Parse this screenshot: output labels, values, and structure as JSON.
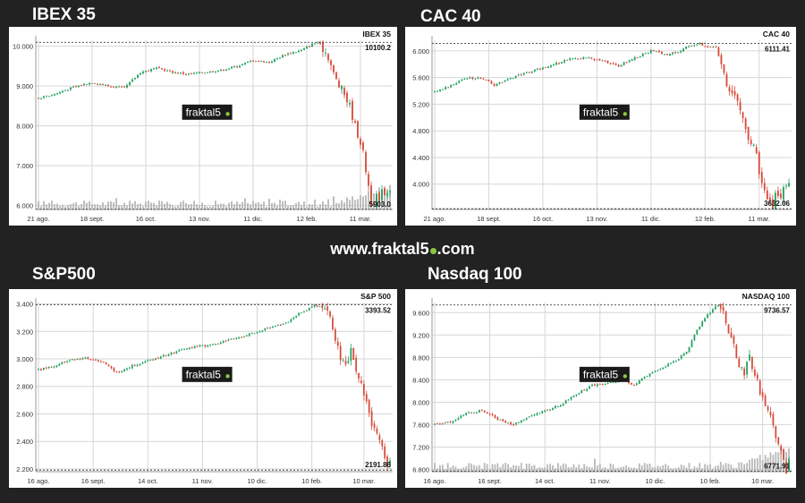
{
  "site": {
    "prefix": "www.fraktal5",
    "suffix": ".com"
  },
  "brand": {
    "text": "fraktal5",
    "dot_color": "#8cc63f"
  },
  "colors": {
    "up": "#20a060",
    "down": "#d64a3a",
    "volume": "#b8b8b8",
    "grid": "#d6d6d6",
    "page": "#222222"
  },
  "chart_data": [
    {
      "type": "candlestick",
      "title": "IBEX 35",
      "legend_label": "IBEX 35",
      "ylim": [
        5900,
        10150
      ],
      "yticks": [
        6000,
        7000,
        8000,
        9000,
        10000
      ],
      "ytick_labels": [
        "6.000",
        "7.000",
        "8.000",
        "9.000",
        "10.000"
      ],
      "xticks": [
        0,
        20,
        40,
        60,
        80,
        100,
        120
      ],
      "xtick_labels": [
        "21 ago.",
        "18 sept.",
        "16 oct.",
        "13 nov.",
        "11 dic.",
        "12 feb.",
        "11 mar."
      ],
      "n_sessions": 132,
      "anchors": [
        [
          0,
          8700
        ],
        [
          6,
          8800
        ],
        [
          12,
          8950
        ],
        [
          20,
          9100
        ],
        [
          26,
          9000
        ],
        [
          32,
          8950
        ],
        [
          38,
          9350
        ],
        [
          44,
          9450
        ],
        [
          50,
          9350
        ],
        [
          56,
          9300
        ],
        [
          62,
          9350
        ],
        [
          68,
          9400
        ],
        [
          74,
          9500
        ],
        [
          80,
          9650
        ],
        [
          86,
          9600
        ],
        [
          92,
          9800
        ],
        [
          98,
          9900
        ],
        [
          102,
          10050
        ],
        [
          104,
          10100.2
        ],
        [
          106,
          9950
        ],
        [
          108,
          9750
        ],
        [
          110,
          9300
        ],
        [
          112,
          9000
        ],
        [
          114,
          8800
        ],
        [
          116,
          8500
        ],
        [
          118,
          8000
        ],
        [
          120,
          7600
        ],
        [
          121,
          7300
        ],
        [
          122,
          6900
        ],
        [
          123,
          6500
        ],
        [
          124,
          6150
        ],
        [
          125,
          5903.0
        ],
        [
          126,
          6250
        ],
        [
          127,
          6000
        ],
        [
          128,
          6500
        ],
        [
          129,
          6300
        ],
        [
          131,
          6450
        ]
      ],
      "high_label": "10100.2",
      "low_label": "5903.0",
      "volume": true
    },
    {
      "type": "candlestick",
      "title": "CAC 40",
      "legend_label": "CAC 40",
      "ylim": [
        3620,
        6160
      ],
      "yticks": [
        4000,
        4400,
        4800,
        5200,
        5600,
        6000
      ],
      "ytick_labels": [
        "4.000",
        "4.400",
        "4.800",
        "5.200",
        "5.600",
        "6.000"
      ],
      "xticks": [
        0,
        20,
        40,
        60,
        80,
        100,
        120
      ],
      "xtick_labels": [
        "21 ago.",
        "18 sept.",
        "16 oct.",
        "13 nov.",
        "11 dic.",
        "12 feb.",
        "11 mar."
      ],
      "n_sessions": 132,
      "anchors": [
        [
          0,
          5380
        ],
        [
          6,
          5480
        ],
        [
          12,
          5600
        ],
        [
          18,
          5580
        ],
        [
          22,
          5480
        ],
        [
          26,
          5560
        ],
        [
          32,
          5650
        ],
        [
          38,
          5720
        ],
        [
          44,
          5800
        ],
        [
          50,
          5880
        ],
        [
          56,
          5900
        ],
        [
          62,
          5850
        ],
        [
          68,
          5780
        ],
        [
          74,
          5900
        ],
        [
          80,
          6000
        ],
        [
          86,
          5950
        ],
        [
          90,
          5980
        ],
        [
          94,
          6080
        ],
        [
          98,
          6111.41
        ],
        [
          100,
          6080
        ],
        [
          104,
          6050
        ],
        [
          106,
          5800
        ],
        [
          108,
          5500
        ],
        [
          110,
          5400
        ],
        [
          112,
          5300
        ],
        [
          114,
          5000
        ],
        [
          116,
          4700
        ],
        [
          118,
          4600
        ],
        [
          120,
          4200
        ],
        [
          122,
          3950
        ],
        [
          124,
          3700
        ],
        [
          125,
          3632.06
        ],
        [
          126,
          3850
        ],
        [
          128,
          3800
        ],
        [
          129,
          3950
        ],
        [
          131,
          3970
        ]
      ],
      "high_label": "6111.41",
      "low_label": "3632.06",
      "volume": false
    },
    {
      "type": "candlestick",
      "title": "S&P500",
      "legend_label": "S&P 500",
      "ylim": [
        2180,
        3410
      ],
      "yticks": [
        2200,
        2400,
        2600,
        2800,
        3000,
        3200,
        3400
      ],
      "ytick_labels": [
        "2.200",
        "2.400",
        "2.600",
        "2.800",
        "3.000",
        "3.200",
        "3.400"
      ],
      "xticks": [
        0,
        21,
        42,
        63,
        84,
        105,
        125
      ],
      "xtick_labels": [
        "16 ago.",
        "16 sept.",
        "14 oct.",
        "11 nov.",
        "10 dic.",
        "10 feb.",
        "10 mar."
      ],
      "n_sessions": 136,
      "anchors": [
        [
          0,
          2920
        ],
        [
          6,
          2950
        ],
        [
          12,
          2990
        ],
        [
          18,
          3010
        ],
        [
          24,
          2980
        ],
        [
          30,
          2900
        ],
        [
          36,
          2950
        ],
        [
          42,
          2990
        ],
        [
          48,
          3020
        ],
        [
          54,
          3060
        ],
        [
          60,
          3090
        ],
        [
          66,
          3100
        ],
        [
          72,
          3130
        ],
        [
          78,
          3160
        ],
        [
          84,
          3200
        ],
        [
          90,
          3230
        ],
        [
          96,
          3270
        ],
        [
          100,
          3330
        ],
        [
          104,
          3370
        ],
        [
          106,
          3393.52
        ],
        [
          108,
          3380
        ],
        [
          110,
          3370
        ],
        [
          112,
          3300
        ],
        [
          114,
          3150
        ],
        [
          116,
          3000
        ],
        [
          118,
          2950
        ],
        [
          120,
          3050
        ],
        [
          122,
          2900
        ],
        [
          124,
          2800
        ],
        [
          126,
          2700
        ],
        [
          128,
          2500
        ],
        [
          130,
          2450
        ],
        [
          132,
          2350
        ],
        [
          134,
          2191.86
        ],
        [
          135,
          2250
        ]
      ],
      "high_label": "3393.52",
      "low_label": "2191.86",
      "volume": false
    },
    {
      "type": "candlestick",
      "title": "Nasdaq 100",
      "legend_label": "NASDAQ 100",
      "ylim": [
        6760,
        9780
      ],
      "yticks": [
        6800,
        7200,
        7600,
        8000,
        8400,
        8800,
        9200,
        9600
      ],
      "ytick_labels": [
        "6.800",
        "7.200",
        "7.600",
        "8.000",
        "8.400",
        "8.800",
        "9.200",
        "9.600"
      ],
      "xticks": [
        0,
        21,
        42,
        63,
        84,
        105,
        125
      ],
      "xtick_labels": [
        "16 ago.",
        "16 sept.",
        "14 oct.",
        "11 nov.",
        "10 dic.",
        "10 feb.",
        "10 mar."
      ],
      "n_sessions": 136,
      "anchors": [
        [
          0,
          7600
        ],
        [
          6,
          7650
        ],
        [
          12,
          7800
        ],
        [
          18,
          7850
        ],
        [
          24,
          7700
        ],
        [
          30,
          7600
        ],
        [
          36,
          7750
        ],
        [
          42,
          7850
        ],
        [
          48,
          7950
        ],
        [
          54,
          8150
        ],
        [
          60,
          8300
        ],
        [
          66,
          8350
        ],
        [
          72,
          8400
        ],
        [
          76,
          8300
        ],
        [
          80,
          8450
        ],
        [
          86,
          8600
        ],
        [
          92,
          8750
        ],
        [
          96,
          8900
        ],
        [
          100,
          9300
        ],
        [
          104,
          9550
        ],
        [
          106,
          9650
        ],
        [
          108,
          9736.57
        ],
        [
          110,
          9600
        ],
        [
          112,
          9200
        ],
        [
          114,
          9000
        ],
        [
          116,
          8700
        ],
        [
          118,
          8500
        ],
        [
          120,
          8800
        ],
        [
          122,
          8500
        ],
        [
          124,
          8200
        ],
        [
          126,
          7900
        ],
        [
          128,
          7700
        ],
        [
          130,
          7400
        ],
        [
          132,
          7100
        ],
        [
          134,
          6771.91
        ],
        [
          135,
          7000
        ]
      ],
      "high_label": "9736.57",
      "low_label": "6771.91",
      "volume": true
    }
  ]
}
